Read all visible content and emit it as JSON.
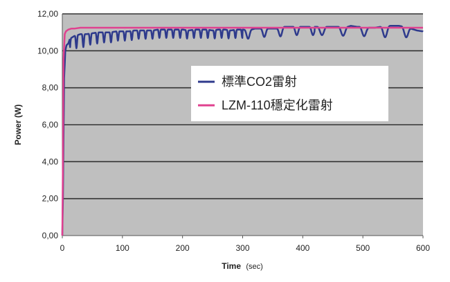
{
  "chart_data": {
    "type": "line",
    "xlabel": "Time",
    "xlabel_unit": "(sec)",
    "ylabel": "Power (W)",
    "xlim": [
      0,
      600
    ],
    "ylim": [
      0,
      12
    ],
    "x_ticks": [
      "0",
      "100",
      "200",
      "300",
      "400",
      "500",
      "600"
    ],
    "y_ticks": [
      "0,00",
      "2,00",
      "4,00",
      "6,00",
      "8,00",
      "10,00",
      "12,00"
    ],
    "grid": "horizontal",
    "background": "#bfbfbf",
    "legend_position": "right-center",
    "series": [
      {
        "name": "標準CO2雷射",
        "color": "#2e3a8c",
        "x": [
          0,
          1,
          3,
          5,
          7,
          10,
          12,
          15,
          20,
          30,
          40,
          50,
          60,
          70,
          80,
          90,
          100,
          110,
          120,
          130,
          140,
          150,
          160,
          170,
          180,
          190,
          200,
          210,
          220,
          230,
          240,
          250,
          260,
          270,
          280,
          290,
          300,
          310,
          320,
          330,
          340,
          350,
          360,
          370,
          380,
          390,
          400,
          410,
          420,
          430,
          440,
          450,
          460,
          470,
          480,
          490,
          500,
          510,
          520,
          530,
          540,
          550,
          560,
          570,
          580,
          590,
          600
        ],
        "y": [
          0,
          2,
          8.5,
          10.0,
          10.3,
          10.4,
          10.6,
          10.7,
          10.8,
          10.9,
          10.9,
          10.95,
          11.0,
          11.0,
          11.0,
          11.05,
          11.05,
          11.05,
          11.1,
          11.1,
          11.1,
          11.1,
          11.15,
          11.15,
          11.15,
          11.15,
          11.15,
          11.1,
          11.15,
          11.15,
          11.15,
          11.1,
          11.15,
          11.15,
          11.1,
          11.15,
          11.15,
          11.1,
          11.2,
          11.2,
          11.2,
          11.2,
          11.2,
          11.3,
          11.3,
          11.3,
          11.3,
          11.3,
          11.3,
          11.3,
          11.3,
          11.3,
          11.3,
          11.25,
          11.35,
          11.3,
          11.3,
          11.25,
          11.25,
          11.3,
          11.35,
          11.35,
          11.35,
          11.3,
          11.2,
          11.1,
          11.05
        ],
        "oscillation_dip": [
          0.35,
          0.7,
          0.7,
          0.6,
          0.6,
          0.55,
          0.55,
          0.5,
          0.5,
          0.45,
          0.45,
          0.45,
          0.45,
          0.45,
          0.45,
          0.45,
          0.45,
          0.45,
          0.45,
          0.45,
          0.45,
          0.45,
          0.45,
          0.45,
          0.45,
          0.45,
          0.45,
          0.45,
          0.45,
          0.45,
          0.45,
          0.45,
          0.45,
          0.45,
          0.45,
          0.45,
          0.45,
          0.45,
          0.5,
          0.6,
          0.6,
          0.6,
          0.55,
          0.55,
          0.55,
          0.6
        ]
      },
      {
        "name": "LZM-110穩定化雷射",
        "color": "#e0418f",
        "x": [
          0,
          1,
          2,
          4,
          6,
          8,
          10,
          15,
          20,
          30,
          50,
          100,
          200,
          300,
          400,
          500,
          600
        ],
        "y": [
          0,
          4,
          9.5,
          10.9,
          11.05,
          11.1,
          11.15,
          11.2,
          11.2,
          11.25,
          11.25,
          11.25,
          11.25,
          11.25,
          11.25,
          11.25,
          11.25
        ]
      }
    ]
  }
}
